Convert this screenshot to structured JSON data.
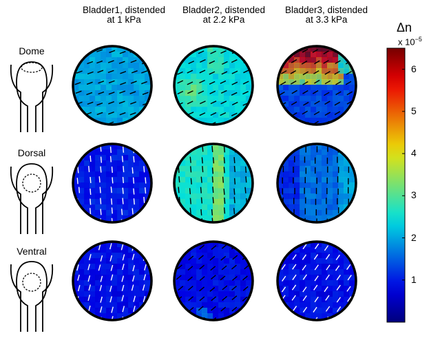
{
  "columns": [
    {
      "title_line1": "Bladder1, distended",
      "title_line2": "at 1 kPa"
    },
    {
      "title_line1": "Bladder2, distended",
      "title_line2": "at 2.2 kPa"
    },
    {
      "title_line1": "Bladder3, distended",
      "title_line2": "at 3.3 kPa"
    }
  ],
  "rows": [
    {
      "label": "Dome"
    },
    {
      "label": "Dorsal"
    },
    {
      "label": "Ventral"
    }
  ],
  "colorbar": {
    "symbol": "Δn",
    "exponent_label": "x 10",
    "exponent_power": "−5",
    "ticks": [
      "6",
      "5",
      "4",
      "3",
      "2",
      "1"
    ],
    "tick_values": [
      6,
      5,
      4,
      3,
      2,
      1
    ],
    "min": 0,
    "max": 6.5,
    "colormap": "jet"
  },
  "colors": {
    "low": "#2b3c9e",
    "mid": "#3fb6e3",
    "yellow": "#e8d51c",
    "high": "#8b1a1a",
    "outline": "#000000"
  },
  "panels": [
    {
      "row": "dome",
      "col": 1,
      "base_level": 2.0,
      "line_color": "black",
      "line_angle_deg": 20
    },
    {
      "row": "dome",
      "col": 2,
      "base_level": 2.4,
      "line_color": "black",
      "line_angle_deg": 25
    },
    {
      "row": "dome",
      "col": 3,
      "base_level": 1.3,
      "line_color": "black",
      "line_angle_deg": 30
    },
    {
      "row": "dorsal",
      "col": 1,
      "base_level": 1.0,
      "line_color": "white",
      "line_angle_deg": 95
    },
    {
      "row": "dorsal",
      "col": 2,
      "base_level": 2.6,
      "line_color": "black",
      "line_angle_deg": 95
    },
    {
      "row": "dorsal",
      "col": 3,
      "base_level": 1.6,
      "line_color": "black",
      "line_angle_deg": 90
    },
    {
      "row": "ventral",
      "col": 1,
      "base_level": 0.9,
      "line_color": "white",
      "line_angle_deg": 75
    },
    {
      "row": "ventral",
      "col": 2,
      "base_level": 0.9,
      "line_color": "black",
      "line_angle_deg": 40
    },
    {
      "row": "ventral",
      "col": 3,
      "base_level": 0.9,
      "line_color": "white",
      "line_angle_deg": 55
    }
  ]
}
